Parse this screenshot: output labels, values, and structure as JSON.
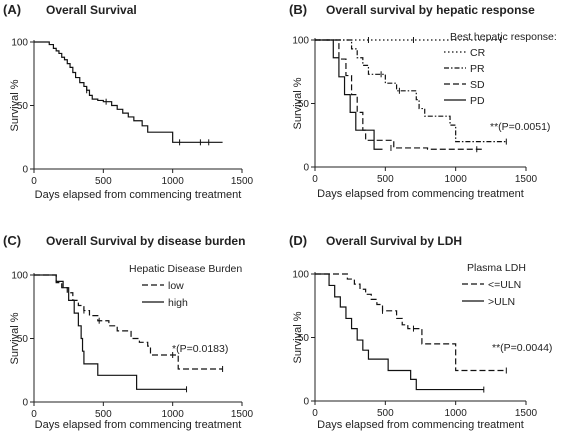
{
  "chart_data": [
    {
      "id": "A",
      "type": "line",
      "step": true,
      "panel_label": "(A)",
      "title": "Overall Survival",
      "xlabel": "Days elapsed from commencing treatment",
      "ylabel": "Survival %",
      "xlim": [
        0,
        1500
      ],
      "ylim": [
        0,
        100
      ],
      "xticks": [
        0,
        500,
        1000,
        1500
      ],
      "yticks": [
        0,
        50,
        100
      ],
      "legend_title": "",
      "annotation": "",
      "series": [
        {
          "name": "",
          "style": "solid",
          "points": [
            [
              0,
              100
            ],
            [
              60,
              100
            ],
            [
              110,
              98
            ],
            [
              140,
              95
            ],
            [
              160,
              93
            ],
            [
              180,
              91
            ],
            [
              200,
              88
            ],
            [
              220,
              86
            ],
            [
              240,
              83
            ],
            [
              260,
              80
            ],
            [
              280,
              76
            ],
            [
              300,
              72
            ],
            [
              330,
              68
            ],
            [
              360,
              65
            ],
            [
              380,
              62
            ],
            [
              400,
              58
            ],
            [
              420,
              55
            ],
            [
              460,
              54
            ],
            [
              500,
              53
            ],
            [
              560,
              50
            ],
            [
              600,
              47
            ],
            [
              640,
              44
            ],
            [
              680,
              41
            ],
            [
              720,
              38
            ],
            [
              780,
              34
            ],
            [
              820,
              29
            ],
            [
              960,
              29
            ],
            [
              1000,
              21
            ],
            [
              1360,
              21
            ]
          ],
          "censored": [
            [
              380,
              62
            ],
            [
              520,
              53
            ],
            [
              1050,
              21
            ],
            [
              1200,
              21
            ],
            [
              1260,
              21
            ]
          ]
        }
      ]
    },
    {
      "id": "B",
      "type": "line",
      "step": true,
      "panel_label": "(B)",
      "title": "Overall survival by hepatic response",
      "xlabel": "Days elapsed from commencing treatment",
      "ylabel": "Survival %",
      "xlim": [
        0,
        1500
      ],
      "ylim": [
        0,
        100
      ],
      "xticks": [
        0,
        500,
        1000,
        1500
      ],
      "yticks": [
        0,
        50,
        100
      ],
      "legend_title": "Best hepatic response:",
      "annotation": "**(P=0.0051)",
      "series": [
        {
          "name": "CR",
          "style": "dotted",
          "points": [
            [
              0,
              100
            ],
            [
              1320,
              100
            ]
          ],
          "censored": [
            [
              380,
              100
            ],
            [
              700,
              100
            ],
            [
              1320,
              100
            ]
          ]
        },
        {
          "name": "PR",
          "style": "dashdot",
          "points": [
            [
              0,
              100
            ],
            [
              220,
              100
            ],
            [
              260,
              93
            ],
            [
              300,
              86
            ],
            [
              340,
              80
            ],
            [
              380,
              73
            ],
            [
              460,
              73
            ],
            [
              500,
              66
            ],
            [
              540,
              66
            ],
            [
              580,
              60
            ],
            [
              680,
              60
            ],
            [
              720,
              53
            ],
            [
              740,
              46
            ],
            [
              780,
              40
            ],
            [
              900,
              40
            ],
            [
              960,
              33
            ],
            [
              1000,
              20
            ],
            [
              1360,
              20
            ]
          ],
          "censored": [
            [
              470,
              73
            ],
            [
              600,
              60
            ],
            [
              1360,
              20
            ]
          ]
        },
        {
          "name": "SD",
          "style": "dashed",
          "points": [
            [
              0,
              100
            ],
            [
              120,
              100
            ],
            [
              170,
              85
            ],
            [
              220,
              72
            ],
            [
              260,
              57
            ],
            [
              300,
              43
            ],
            [
              340,
              29
            ],
            [
              360,
              21
            ],
            [
              500,
              21
            ],
            [
              560,
              15
            ],
            [
              760,
              15
            ],
            [
              800,
              14
            ],
            [
              1200,
              14
            ]
          ],
          "censored": [
            [
              540,
              15
            ],
            [
              1150,
              14
            ]
          ]
        },
        {
          "name": "PD",
          "style": "solid",
          "points": [
            [
              0,
              100
            ],
            [
              100,
              100
            ],
            [
              130,
              86
            ],
            [
              170,
              71
            ],
            [
              210,
              57
            ],
            [
              250,
              43
            ],
            [
              290,
              29
            ],
            [
              380,
              29
            ],
            [
              420,
              14
            ],
            [
              480,
              14
            ]
          ],
          "censored": []
        }
      ]
    },
    {
      "id": "C",
      "type": "line",
      "step": true,
      "panel_label": "(C)",
      "title": "Overall Survival by disease burden",
      "xlabel": "Days elapsed from commencing treatment",
      "ylabel": "Survival %",
      "xlim": [
        0,
        1500
      ],
      "ylim": [
        0,
        100
      ],
      "xticks": [
        0,
        500,
        1000,
        1500
      ],
      "yticks": [
        0,
        50,
        100
      ],
      "legend_title": "Hepatic Disease Burden",
      "annotation": "*(P=0.0183)",
      "series": [
        {
          "name": "low",
          "style": "dashed",
          "points": [
            [
              0,
              100
            ],
            [
              100,
              100
            ],
            [
              160,
              94
            ],
            [
              200,
              90
            ],
            [
              240,
              86
            ],
            [
              280,
              80
            ],
            [
              320,
              76
            ],
            [
              360,
              72
            ],
            [
              400,
              68
            ],
            [
              460,
              64
            ],
            [
              540,
              60
            ],
            [
              600,
              56
            ],
            [
              700,
              50
            ],
            [
              760,
              47
            ],
            [
              820,
              44
            ],
            [
              840,
              37
            ],
            [
              1000,
              37
            ],
            [
              1040,
              26
            ],
            [
              1360,
              26
            ]
          ],
          "censored": [
            [
              360,
              72
            ],
            [
              470,
              64
            ],
            [
              1000,
              37
            ],
            [
              1360,
              26
            ]
          ]
        },
        {
          "name": "high",
          "style": "solid",
          "points": [
            [
              0,
              100
            ],
            [
              100,
              100
            ],
            [
              160,
              95
            ],
            [
              210,
              90
            ],
            [
              250,
              80
            ],
            [
              290,
              70
            ],
            [
              320,
              60
            ],
            [
              340,
              50
            ],
            [
              350,
              40
            ],
            [
              360,
              30
            ],
            [
              440,
              30
            ],
            [
              460,
              21
            ],
            [
              700,
              21
            ],
            [
              740,
              10
            ],
            [
              1100,
              10
            ]
          ],
          "censored": [
            [
              1100,
              10
            ]
          ]
        }
      ]
    },
    {
      "id": "D",
      "type": "line",
      "step": true,
      "panel_label": "(D)",
      "title": "Overall Survival by LDH",
      "xlabel": "Days elapsed from commencing treatment",
      "ylabel": "Survival %",
      "xlim": [
        0,
        1500
      ],
      "ylim": [
        0,
        100
      ],
      "xticks": [
        0,
        500,
        1000,
        1500
      ],
      "yticks": [
        0,
        50,
        100
      ],
      "legend_title": "Plasma LDH",
      "annotation": "**(P=0.0044)",
      "series": [
        {
          "name": "<=ULN",
          "style": "dashed",
          "points": [
            [
              0,
              100
            ],
            [
              180,
              100
            ],
            [
              230,
              96
            ],
            [
              280,
              92
            ],
            [
              320,
              88
            ],
            [
              360,
              84
            ],
            [
              400,
              80
            ],
            [
              440,
              76
            ],
            [
              480,
              71
            ],
            [
              540,
              71
            ],
            [
              580,
              65
            ],
            [
              620,
              60
            ],
            [
              660,
              57
            ],
            [
              720,
              57
            ],
            [
              760,
              45
            ],
            [
              960,
              45
            ],
            [
              1000,
              24
            ],
            [
              1360,
              24
            ]
          ],
          "censored": [
            [
              480,
              71
            ],
            [
              700,
              57
            ],
            [
              1360,
              24
            ]
          ]
        },
        {
          "name": ">ULN",
          "style": "solid",
          "points": [
            [
              0,
              100
            ],
            [
              60,
              100
            ],
            [
              100,
              91
            ],
            [
              140,
              82
            ],
            [
              180,
              74
            ],
            [
              220,
              65
            ],
            [
              260,
              57
            ],
            [
              300,
              48
            ],
            [
              340,
              40
            ],
            [
              380,
              33
            ],
            [
              480,
              33
            ],
            [
              520,
              24
            ],
            [
              620,
              24
            ],
            [
              680,
              17
            ],
            [
              720,
              9
            ],
            [
              1200,
              9
            ]
          ],
          "censored": [
            [
              1200,
              9
            ]
          ]
        }
      ]
    }
  ]
}
